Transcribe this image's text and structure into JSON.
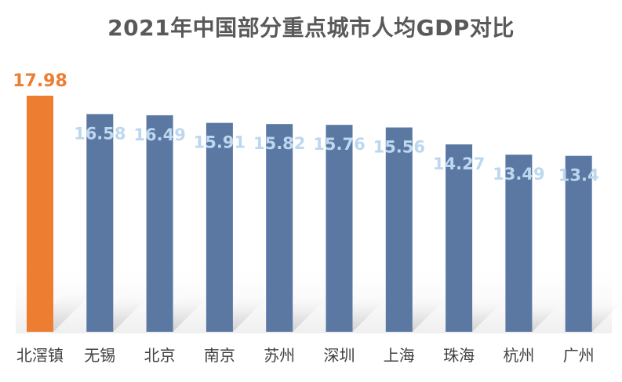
{
  "title": "2021年中国部分重点城市人均GDP对比",
  "colors": {
    "highlight": "#ED7D31",
    "bar": "#5B78A3",
    "highlight_label": "#ED7D31",
    "bar_label": "#BDD7EE",
    "category_label": "#404040",
    "title": "#595959",
    "shadow": "#d9d9d9"
  },
  "chart_data": {
    "type": "bar",
    "title": "2021年中国部分重点城市人均GDP对比",
    "xlabel": "",
    "ylabel": "",
    "categories": [
      "北滘镇",
      "无锡",
      "北京",
      "南京",
      "苏州",
      "深圳",
      "上海",
      "珠海",
      "杭州",
      "广州"
    ],
    "values": [
      17.98,
      16.58,
      16.49,
      15.91,
      15.82,
      15.76,
      15.56,
      14.27,
      13.49,
      13.4
    ],
    "data_labels": [
      "17.98",
      "16.58",
      "16.49",
      "15.91",
      "15.82",
      "15.76",
      "15.56",
      "14.27",
      "13.49",
      "13.4"
    ],
    "highlight_index": 0,
    "ylim": [
      0,
      17.98
    ],
    "grid": false,
    "legend": "none"
  }
}
